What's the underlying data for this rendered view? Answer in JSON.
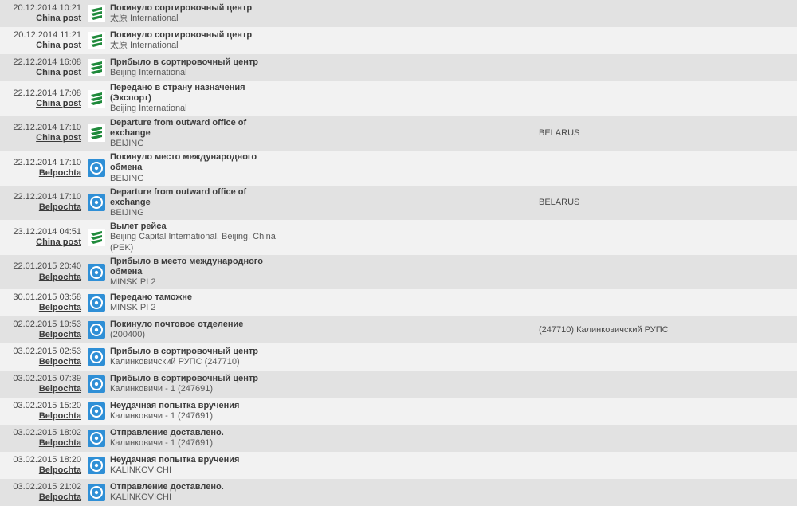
{
  "carriers": {
    "chinapost": {
      "label": "China post",
      "icon": "chinapost"
    },
    "belpochta": {
      "label": "Belpochta",
      "icon": "belpochta"
    }
  },
  "icons": {
    "chinapost": {
      "bg": "#ffffff",
      "fg": "#1f8a3b"
    },
    "belpochta": {
      "bg": "#2f8fd6",
      "fg": "#ffffff"
    }
  },
  "colors": {
    "row_odd": "#e2e2e2",
    "row_even": "#f2f2f2",
    "text": "#4a4a4a"
  },
  "rows": [
    {
      "datetime": "20.12.2014 10:21",
      "carrier": "chinapost",
      "status": "Покинуло сортировочный центр",
      "location": "太原 International",
      "dest": ""
    },
    {
      "datetime": "20.12.2014 11:21",
      "carrier": "chinapost",
      "status": "Покинуло сортировочный центр",
      "location": "太原 International",
      "dest": ""
    },
    {
      "datetime": "22.12.2014 16:08",
      "carrier": "chinapost",
      "status": "Прибыло в сортировочный центр",
      "location": "Beijing International",
      "dest": ""
    },
    {
      "datetime": "22.12.2014 17:08",
      "carrier": "chinapost",
      "status": "Передано в страну назначения (Экспорт)",
      "location": "Beijing International",
      "dest": ""
    },
    {
      "datetime": "22.12.2014 17:10",
      "carrier": "chinapost",
      "status": "Departure from outward office of exchange",
      "location": "BEIJING",
      "dest": "BELARUS"
    },
    {
      "datetime": "22.12.2014 17:10",
      "carrier": "belpochta",
      "status": "Покинуло место международного обмена",
      "location": "BEIJING",
      "dest": ""
    },
    {
      "datetime": "22.12.2014 17:10",
      "carrier": "belpochta",
      "status": "Departure from outward office of exchange",
      "location": "BEIJING",
      "dest": "BELARUS"
    },
    {
      "datetime": "23.12.2014 04:51",
      "carrier": "chinapost",
      "status": "Вылет рейса",
      "location": "Beijing Capital International, Beijing, China (PEK)",
      "dest": ""
    },
    {
      "datetime": "22.01.2015 20:40",
      "carrier": "belpochta",
      "status": "Прибыло в место международного обмена",
      "location": "MINSK PI 2",
      "dest": ""
    },
    {
      "datetime": "30.01.2015 03:58",
      "carrier": "belpochta",
      "status": "Передано таможне",
      "location": "MINSK PI 2",
      "dest": ""
    },
    {
      "datetime": "02.02.2015 19:53",
      "carrier": "belpochta",
      "status": "Покинуло почтовое отделение",
      "location": "(200400)",
      "dest": "(247710) Калинковичский РУПС"
    },
    {
      "datetime": "03.02.2015 02:53",
      "carrier": "belpochta",
      "status": "Прибыло в сортировочный центр",
      "location": "Калинковичский РУПС (247710)",
      "dest": ""
    },
    {
      "datetime": "03.02.2015 07:39",
      "carrier": "belpochta",
      "status": "Прибыло в сортировочный центр",
      "location": "Калинковичи - 1 (247691)",
      "dest": ""
    },
    {
      "datetime": "03.02.2015 15:20",
      "carrier": "belpochta",
      "status": "Неудачная попытка вручения",
      "location": "Калинковичи - 1 (247691)",
      "dest": ""
    },
    {
      "datetime": "03.02.2015 18:02",
      "carrier": "belpochta",
      "status": "Отправление доставлено.",
      "location": "Калинковичи - 1 (247691)",
      "dest": ""
    },
    {
      "datetime": "03.02.2015 18:20",
      "carrier": "belpochta",
      "status": "Неудачная попытка вручения",
      "location": "KALINKOVICHI",
      "dest": ""
    },
    {
      "datetime": "03.02.2015 21:02",
      "carrier": "belpochta",
      "status": "Отправление доставлено.",
      "location": "KALINKOVICHI",
      "dest": ""
    }
  ]
}
